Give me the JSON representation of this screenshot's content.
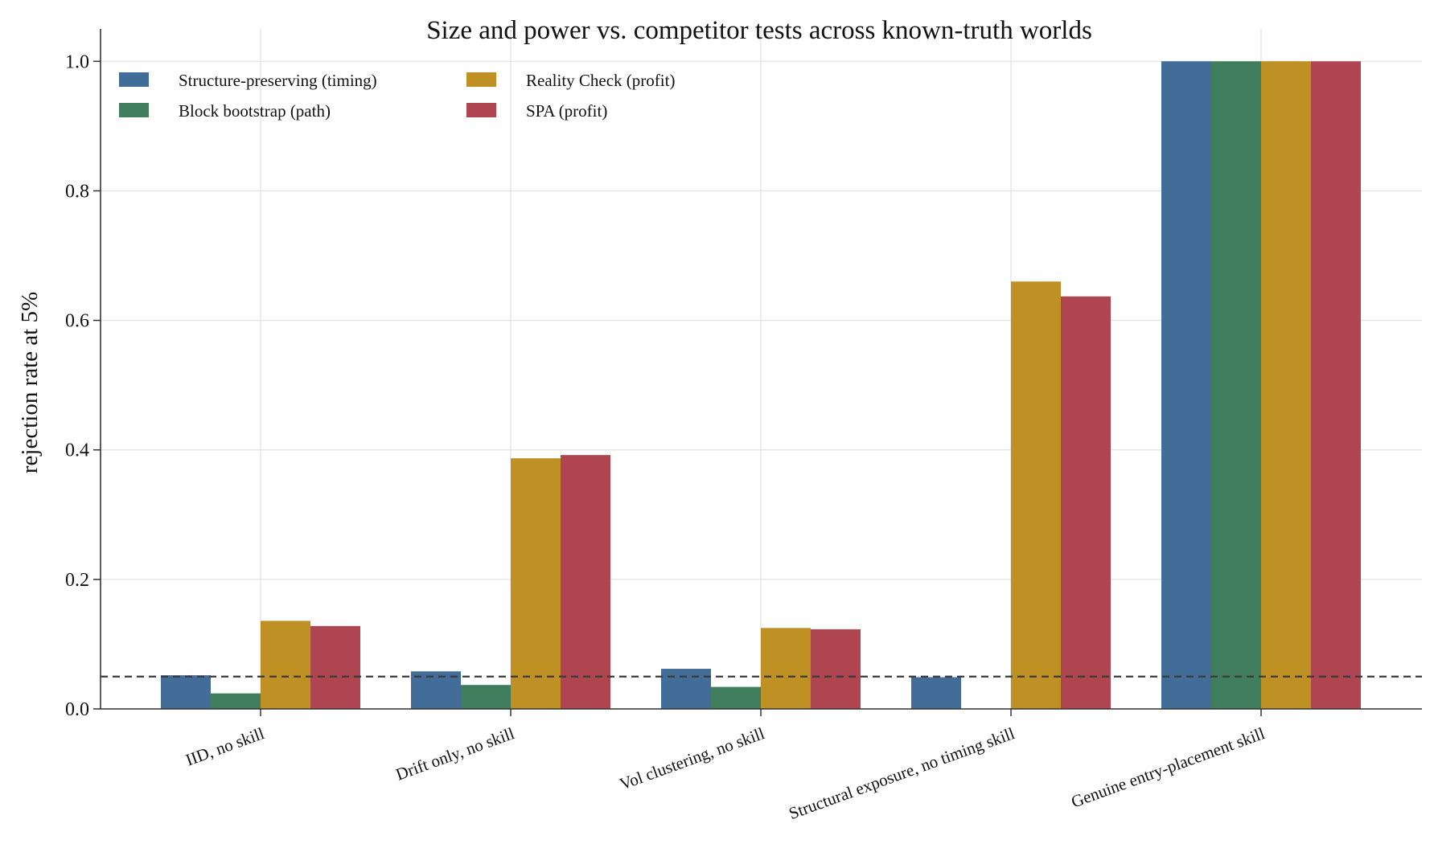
{
  "chart_data": {
    "type": "bar",
    "title": "Size and power vs. competitor tests across known-truth worlds",
    "xlabel": "",
    "ylabel": "rejection rate at 5%",
    "ylim": [
      0,
      1.05
    ],
    "yticks": [
      "0.0",
      "0.2",
      "0.4",
      "0.6",
      "0.8",
      "1.0"
    ],
    "grid": true,
    "legend_position": "top-left",
    "reference_line": 0.05,
    "categories": [
      "IID, no skill",
      "Drift only, no skill",
      "Vol clustering, no skill",
      "Structural exposure, no timing skill",
      "Genuine entry-placement skill"
    ],
    "series": [
      {
        "name": "Structure-preserving (timing)",
        "color": "#436d99",
        "values": [
          0.052,
          0.058,
          0.062,
          0.049,
          1.0
        ]
      },
      {
        "name": "Block bootstrap (path)",
        "color": "#3f7d5c",
        "values": [
          0.024,
          0.037,
          0.034,
          0.0,
          1.0
        ]
      },
      {
        "name": "Reality Check (profit)",
        "color": "#bf9024",
        "values": [
          0.136,
          0.387,
          0.125,
          0.66,
          1.0
        ]
      },
      {
        "name": "SPA (profit)",
        "color": "#ae4550",
        "values": [
          0.128,
          0.392,
          0.123,
          0.637,
          1.0
        ]
      }
    ]
  }
}
